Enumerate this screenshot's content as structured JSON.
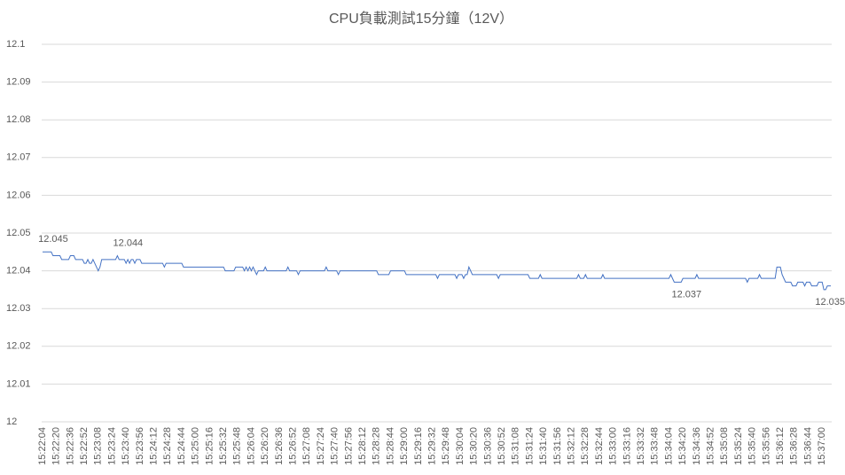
{
  "chart_data": {
    "type": "line",
    "title": "CPU負載測試15分鐘（12V）",
    "categories": [
      "15:22:04",
      null,
      null,
      null,
      null,
      null,
      null,
      null,
      "15:22:20",
      null,
      null,
      null,
      null,
      null,
      null,
      null,
      "15:22:36",
      null,
      null,
      null,
      null,
      null,
      null,
      null,
      "15:22:52",
      null,
      null,
      null,
      null,
      null,
      null,
      null,
      "15:23:08",
      null,
      null,
      null,
      null,
      null,
      null,
      null,
      "15:23:24",
      null,
      null,
      null,
      null,
      null,
      null,
      null,
      "15:23:40",
      null,
      null,
      null,
      null,
      null,
      null,
      null,
      "15:23:56",
      null,
      null,
      null,
      null,
      null,
      null,
      null,
      "15:24:12",
      null,
      null,
      null,
      null,
      null,
      null,
      null,
      "15:24:28",
      null,
      null,
      null,
      null,
      null,
      null,
      null,
      "15:24:44",
      null,
      null,
      null,
      null,
      null,
      null,
      null,
      "15:25:00",
      null,
      null,
      null,
      null,
      null,
      null,
      null,
      "15:25:16",
      null,
      null,
      null,
      null,
      null,
      null,
      null,
      "15:25:32",
      null,
      null,
      null,
      null,
      null,
      null,
      null,
      "15:25:48",
      null,
      null,
      null,
      null,
      null,
      null,
      null,
      "15:26:04",
      null,
      null,
      null,
      null,
      null,
      null,
      null,
      "15:26:20",
      null,
      null,
      null,
      null,
      null,
      null,
      null,
      "15:26:36",
      null,
      null,
      null,
      null,
      null,
      null,
      null,
      "15:26:52",
      null,
      null,
      null,
      null,
      null,
      null,
      null,
      "15:27:08",
      null,
      null,
      null,
      null,
      null,
      null,
      null,
      "15:27:24",
      null,
      null,
      null,
      null,
      null,
      null,
      null,
      "15:27:40",
      null,
      null,
      null,
      null,
      null,
      null,
      null,
      "15:27:56",
      null,
      null,
      null,
      null,
      null,
      null,
      null,
      "15:28:12",
      null,
      null,
      null,
      null,
      null,
      null,
      null,
      "15:28:28",
      null,
      null,
      null,
      null,
      null,
      null,
      null,
      "15:28:44",
      null,
      null,
      null,
      null,
      null,
      null,
      null,
      "15:29:00",
      null,
      null,
      null,
      null,
      null,
      null,
      null,
      "15:29:16",
      null,
      null,
      null,
      null,
      null,
      null,
      null,
      "15:29:32",
      null,
      null,
      null,
      null,
      null,
      null,
      null,
      "15:29:48",
      null,
      null,
      null,
      null,
      null,
      null,
      null,
      "15:30:04",
      null,
      null,
      null,
      null,
      null,
      null,
      null,
      "15:30:20",
      null,
      null,
      null,
      null,
      null,
      null,
      null,
      "15:30:36",
      null,
      null,
      null,
      null,
      null,
      null,
      null,
      "15:30:52",
      null,
      null,
      null,
      null,
      null,
      null,
      null,
      "15:31:08",
      null,
      null,
      null,
      null,
      null,
      null,
      null,
      "15:31:24",
      null,
      null,
      null,
      null,
      null,
      null,
      null,
      "15:31:40",
      null,
      null,
      null,
      null,
      null,
      null,
      null,
      "15:31:56",
      null,
      null,
      null,
      null,
      null,
      null,
      null,
      "15:32:12",
      null,
      null,
      null,
      null,
      null,
      null,
      null,
      "15:32:28",
      null,
      null,
      null,
      null,
      null,
      null,
      null,
      "15:32:44",
      null,
      null,
      null,
      null,
      null,
      null,
      null,
      "15:33:00",
      null,
      null,
      null,
      null,
      null,
      null,
      null,
      "15:33:16",
      null,
      null,
      null,
      null,
      null,
      null,
      null,
      "15:33:32",
      null,
      null,
      null,
      null,
      null,
      null,
      null,
      "15:33:48",
      null,
      null,
      null,
      null,
      null,
      null,
      null,
      "15:34:04",
      null,
      null,
      null,
      null,
      null,
      null,
      null,
      "15:34:20",
      null,
      null,
      null,
      null,
      null,
      null,
      null,
      "15:34:36",
      null,
      null,
      null,
      null,
      null,
      null,
      null,
      "15:34:52",
      null,
      null,
      null,
      null,
      null,
      null,
      null,
      "15:35:08",
      null,
      null,
      null,
      null,
      null,
      null,
      null,
      "15:35:24",
      null,
      null,
      null,
      null,
      null,
      null,
      null,
      "15:35:40",
      null,
      null,
      null,
      null,
      null,
      null,
      null,
      "15:35:56",
      null,
      null,
      null,
      null,
      null,
      null,
      null,
      "15:36:12",
      null,
      null,
      null,
      null,
      null,
      null,
      null,
      "15:36:28",
      null,
      null,
      null,
      null,
      null,
      null,
      null,
      "15:36:44",
      null,
      null,
      null,
      null,
      null,
      null,
      null,
      "15:37:00",
      null,
      null,
      null,
      null,
      null
    ],
    "values": [
      12.045,
      12.045,
      12.045,
      12.045,
      12.045,
      12.045,
      12.044,
      12.044,
      12.044,
      12.044,
      12.044,
      12.043,
      12.043,
      12.043,
      12.043,
      12.043,
      12.044,
      12.044,
      12.044,
      12.043,
      12.043,
      12.043,
      12.043,
      12.043,
      12.042,
      12.042,
      12.043,
      12.042,
      12.042,
      12.043,
      12.042,
      12.041,
      12.04,
      12.041,
      12.043,
      12.043,
      12.043,
      12.043,
      12.043,
      12.043,
      12.043,
      12.043,
      12.043,
      12.044,
      12.043,
      12.043,
      12.043,
      12.043,
      12.042,
      12.043,
      12.042,
      12.043,
      12.043,
      12.042,
      12.043,
      12.043,
      12.043,
      12.042,
      12.042,
      12.042,
      12.042,
      12.042,
      12.042,
      12.042,
      12.042,
      12.042,
      12.042,
      12.042,
      12.042,
      12.042,
      12.041,
      12.042,
      12.042,
      12.042,
      12.042,
      12.042,
      12.042,
      12.042,
      12.042,
      12.042,
      12.042,
      12.041,
      12.041,
      12.041,
      12.041,
      12.041,
      12.041,
      12.041,
      12.041,
      12.041,
      12.041,
      12.041,
      12.041,
      12.041,
      12.041,
      12.041,
      12.041,
      12.041,
      12.041,
      12.041,
      12.041,
      12.041,
      12.041,
      12.041,
      12.041,
      12.04,
      12.04,
      12.04,
      12.04,
      12.04,
      12.04,
      12.041,
      12.041,
      12.041,
      12.041,
      12.041,
      12.04,
      12.041,
      12.04,
      12.041,
      12.04,
      12.041,
      12.04,
      12.039,
      12.04,
      12.04,
      12.04,
      12.04,
      12.041,
      12.04,
      12.04,
      12.04,
      12.04,
      12.04,
      12.04,
      12.04,
      12.04,
      12.04,
      12.04,
      12.04,
      12.04,
      12.041,
      12.04,
      12.04,
      12.04,
      12.04,
      12.04,
      12.039,
      12.04,
      12.04,
      12.04,
      12.04,
      12.04,
      12.04,
      12.04,
      12.04,
      12.04,
      12.04,
      12.04,
      12.04,
      12.04,
      12.04,
      12.04,
      12.041,
      12.04,
      12.04,
      12.04,
      12.04,
      12.04,
      12.04,
      12.039,
      12.04,
      12.04,
      12.04,
      12.04,
      12.04,
      12.04,
      12.04,
      12.04,
      12.04,
      12.04,
      12.04,
      12.04,
      12.04,
      12.04,
      12.04,
      12.04,
      12.04,
      12.04,
      12.04,
      12.04,
      12.04,
      12.04,
      12.039,
      12.039,
      12.039,
      12.039,
      12.039,
      12.039,
      12.039,
      12.04,
      12.04,
      12.04,
      12.04,
      12.04,
      12.04,
      12.04,
      12.04,
      12.04,
      12.039,
      12.039,
      12.039,
      12.039,
      12.039,
      12.039,
      12.039,
      12.039,
      12.039,
      12.039,
      12.039,
      12.039,
      12.039,
      12.039,
      12.039,
      12.039,
      12.039,
      12.039,
      12.038,
      12.039,
      12.039,
      12.039,
      12.039,
      12.039,
      12.039,
      12.039,
      12.039,
      12.039,
      12.039,
      12.038,
      12.039,
      12.039,
      12.039,
      12.038,
      12.039,
      12.039,
      12.041,
      12.04,
      12.039,
      12.039,
      12.039,
      12.039,
      12.039,
      12.039,
      12.039,
      12.039,
      12.039,
      12.039,
      12.039,
      12.039,
      12.039,
      12.039,
      12.039,
      12.038,
      12.039,
      12.039,
      12.039,
      12.039,
      12.039,
      12.039,
      12.039,
      12.039,
      12.039,
      12.039,
      12.039,
      12.039,
      12.039,
      12.039,
      12.039,
      12.039,
      12.039,
      12.038,
      12.038,
      12.038,
      12.038,
      12.038,
      12.038,
      12.039,
      12.038,
      12.038,
      12.038,
      12.038,
      12.038,
      12.038,
      12.038,
      12.038,
      12.038,
      12.038,
      12.038,
      12.038,
      12.038,
      12.038,
      12.038,
      12.038,
      12.038,
      12.038,
      12.038,
      12.038,
      12.038,
      12.039,
      12.038,
      12.038,
      12.038,
      12.039,
      12.038,
      12.038,
      12.038,
      12.038,
      12.038,
      12.038,
      12.038,
      12.038,
      12.038,
      12.039,
      12.038,
      12.038,
      12.038,
      12.038,
      12.038,
      12.038,
      12.038,
      12.038,
      12.038,
      12.038,
      12.038,
      12.038,
      12.038,
      12.038,
      12.038,
      12.038,
      12.038,
      12.038,
      12.038,
      12.038,
      12.038,
      12.038,
      12.038,
      12.038,
      12.038,
      12.038,
      12.038,
      12.038,
      12.038,
      12.038,
      12.038,
      12.038,
      12.038,
      12.038,
      12.038,
      12.038,
      12.038,
      12.038,
      12.039,
      12.038,
      12.037,
      12.037,
      12.037,
      12.037,
      12.037,
      12.038,
      12.038,
      12.038,
      12.038,
      12.038,
      12.038,
      12.038,
      12.038,
      12.039,
      12.038,
      12.038,
      12.038,
      12.038,
      12.038,
      12.038,
      12.038,
      12.038,
      12.038,
      12.038,
      12.038,
      12.038,
      12.038,
      12.038,
      12.038,
      12.038,
      12.038,
      12.038,
      12.038,
      12.038,
      12.038,
      12.038,
      12.038,
      12.038,
      12.038,
      12.038,
      12.038,
      12.038,
      12.037,
      12.038,
      12.038,
      12.038,
      12.038,
      12.038,
      12.038,
      12.039,
      12.038,
      12.038,
      12.038,
      12.038,
      12.038,
      12.038,
      12.038,
      12.038,
      12.038,
      12.041,
      12.041,
      12.041,
      12.039,
      12.038,
      12.037,
      12.037,
      12.037,
      12.037,
      12.036,
      12.036,
      12.036,
      12.037,
      12.037,
      12.037,
      12.037,
      12.036,
      12.037,
      12.037,
      12.037,
      12.036,
      12.036,
      12.036,
      12.036,
      12.037,
      12.037,
      12.037,
      12.035,
      12.035,
      12.036,
      12.036,
      12.036
    ],
    "color": "#4472c4",
    "ylim": [
      12,
      12.1
    ],
    "yticks": [
      12,
      12.01,
      12.02,
      12.03,
      12.04,
      12.05,
      12.06,
      12.07,
      12.08,
      12.09,
      12.1
    ],
    "grid": true
  }
}
